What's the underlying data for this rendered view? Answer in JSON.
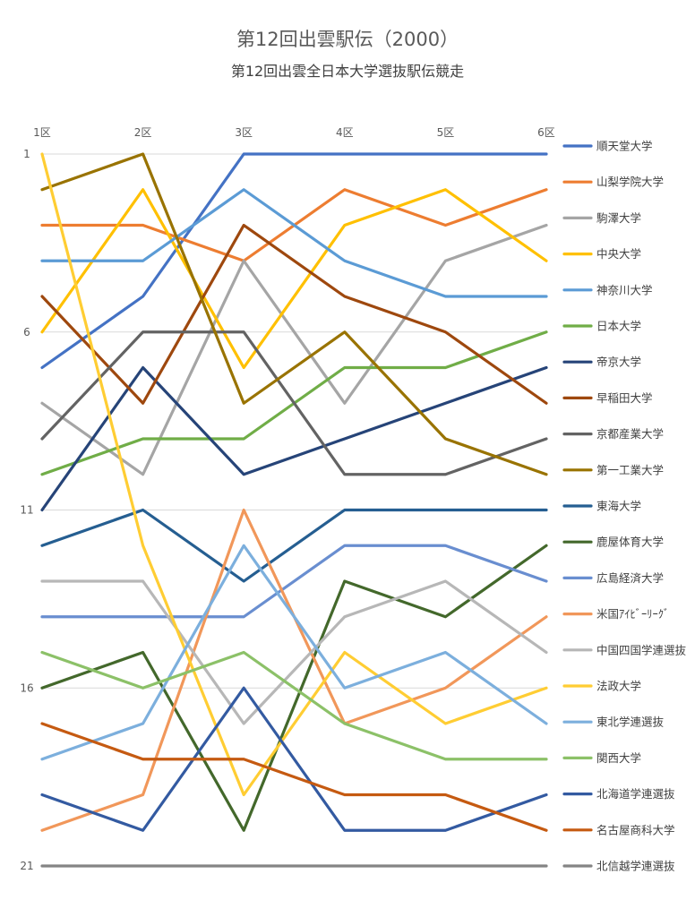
{
  "chart_data": {
    "type": "line",
    "title": "第12回出雲駅伝（2000）",
    "subtitle": "第12回出雲全日本大学選抜駅伝競走",
    "categories": [
      "1区",
      "2区",
      "3区",
      "4区",
      "5区",
      "6区"
    ],
    "y_ticks": [
      1,
      6,
      11,
      16,
      21
    ],
    "ylim": [
      1,
      21
    ],
    "y_reversed": true,
    "grid": true,
    "legend_position": "right",
    "series": [
      {
        "name": "順天堂大学",
        "color": "#4472C4",
        "values": [
          7,
          5,
          1,
          1,
          1,
          1
        ]
      },
      {
        "name": "山梨学院大学",
        "color": "#ED7D31",
        "values": [
          3,
          3,
          4,
          2,
          3,
          2
        ]
      },
      {
        "name": "駒澤大学",
        "color": "#A5A5A5",
        "values": [
          8,
          10,
          4,
          8,
          4,
          3
        ]
      },
      {
        "name": "中央大学",
        "color": "#FFC000",
        "values": [
          6,
          2,
          7,
          3,
          2,
          4
        ]
      },
      {
        "name": "神奈川大学",
        "color": "#5B9BD5",
        "values": [
          4,
          4,
          2,
          4,
          5,
          5
        ]
      },
      {
        "name": "日本大学",
        "color": "#70AD47",
        "values": [
          10,
          9,
          9,
          7,
          7,
          6
        ]
      },
      {
        "name": "帝京大学",
        "color": "#264478",
        "values": [
          11,
          7,
          10,
          9,
          8,
          7
        ]
      },
      {
        "name": "早稲田大学",
        "color": "#9E480E",
        "values": [
          5,
          8,
          3,
          5,
          6,
          8
        ]
      },
      {
        "name": "京都産業大学",
        "color": "#636363",
        "values": [
          9,
          6,
          6,
          10,
          10,
          9
        ]
      },
      {
        "name": "第一工業大学",
        "color": "#997300",
        "values": [
          2,
          1,
          8,
          6,
          9,
          10
        ]
      },
      {
        "name": "東海大学",
        "color": "#255E91",
        "values": [
          12,
          11,
          13,
          11,
          11,
          11
        ]
      },
      {
        "name": "鹿屋体育大学",
        "color": "#43682B",
        "values": [
          16,
          15,
          20,
          13,
          14,
          12
        ]
      },
      {
        "name": "広島経済大学",
        "color": "#698ED0",
        "values": [
          14,
          14,
          14,
          12,
          12,
          13
        ]
      },
      {
        "name": "米国ｱｲﾋﾞｰﾘｰｸﾞ",
        "color": "#F1975A",
        "values": [
          20,
          19,
          11,
          17,
          16,
          14
        ]
      },
      {
        "name": "中国四国学連選抜",
        "color": "#B7B7B7",
        "values": [
          13,
          13,
          17,
          14,
          13,
          15
        ]
      },
      {
        "name": "法政大学",
        "color": "#FFCD33",
        "values": [
          1,
          12,
          19,
          15,
          17,
          16
        ]
      },
      {
        "name": "東北学連選抜",
        "color": "#7CAFDD",
        "values": [
          18,
          17,
          12,
          16,
          15,
          17
        ]
      },
      {
        "name": "関西大学",
        "color": "#8CC168",
        "values": [
          15,
          16,
          15,
          17,
          18,
          18
        ]
      },
      {
        "name": "北海道学連選抜",
        "color": "#335AA1",
        "values": [
          19,
          20,
          16,
          20,
          20,
          19
        ]
      },
      {
        "name": "名古屋商科大学",
        "color": "#C55A11",
        "values": [
          17,
          18,
          18,
          19,
          19,
          20
        ]
      },
      {
        "name": "北信越学連選抜",
        "color": "#848484",
        "values": [
          21,
          21,
          21,
          21,
          21,
          21
        ]
      }
    ]
  }
}
